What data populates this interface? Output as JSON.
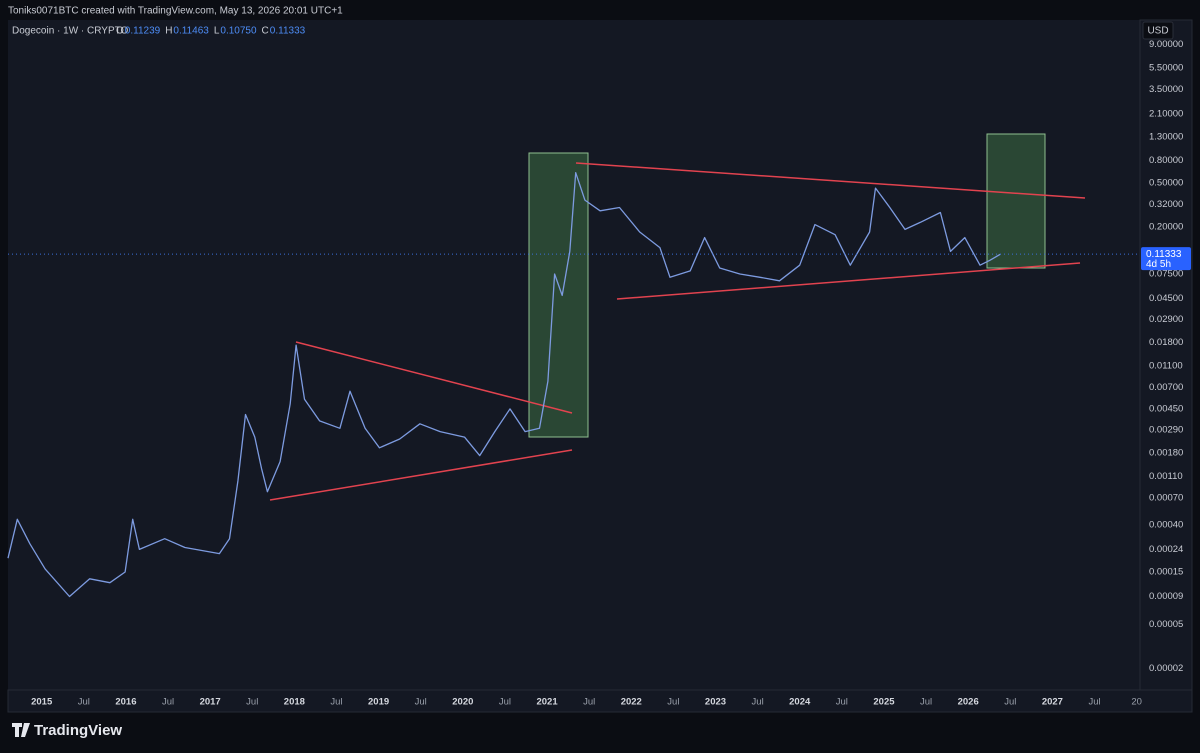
{
  "header": {
    "credit": "Toniks0071BTC created with TradingView.com, May 13, 2026 20:01 UTC+1",
    "ohlc": [
      {
        "key": "O",
        "value": "0.11239"
      },
      {
        "key": "H",
        "value": "0.11463"
      },
      {
        "key": "L",
        "value": "0.10750"
      },
      {
        "key": "C",
        "value": "0.11333"
      }
    ],
    "currency": "USD"
  },
  "chart_data": {
    "type": "line",
    "log_scale": true,
    "grid": false,
    "series": [
      {
        "name": "Dogecoin · 1W · CRYPTO",
        "color": "#7d9be0",
        "x": [
          2014.6,
          2014.71,
          2014.86,
          2015.04,
          2015.33,
          2015.57,
          2015.81,
          2015.99,
          2016.08,
          2016.16,
          2016.46,
          2016.7,
          2017.11,
          2017.23,
          2017.33,
          2017.42,
          2017.53,
          2017.61,
          2017.68,
          2017.83,
          2017.95,
          2018.02,
          2018.12,
          2018.3,
          2018.54,
          2018.66,
          2018.84,
          2019.01,
          2019.25,
          2019.49,
          2019.73,
          2020.02,
          2020.2,
          2020.38,
          2020.56,
          2020.74,
          2020.91,
          2021.01,
          2021.09,
          2021.18,
          2021.27,
          2021.34,
          2021.45,
          2021.63,
          2021.86,
          2022.1,
          2022.34,
          2022.46,
          2022.7,
          2022.87,
          2023.05,
          2023.29,
          2023.53,
          2023.76,
          2024.0,
          2024.18,
          2024.42,
          2024.6,
          2024.83,
          2024.9,
          2025.07,
          2025.25,
          2025.43,
          2025.67,
          2025.79,
          2025.96,
          2026.14,
          2026.26,
          2026.38
        ],
        "values": [
          0.0002,
          0.00045,
          0.00027,
          0.00016,
          9e-05,
          0.00013,
          0.00012,
          0.00015,
          0.00045,
          0.00024,
          0.0003,
          0.00025,
          0.00022,
          0.0003,
          0.001,
          0.004,
          0.0025,
          0.0013,
          0.0008,
          0.0015,
          0.005,
          0.017,
          0.0055,
          0.0035,
          0.003,
          0.0065,
          0.003,
          0.002,
          0.0024,
          0.0033,
          0.0028,
          0.0025,
          0.0017,
          0.0028,
          0.0045,
          0.0028,
          0.003,
          0.008,
          0.075,
          0.048,
          0.12,
          0.62,
          0.35,
          0.28,
          0.3,
          0.18,
          0.13,
          0.07,
          0.08,
          0.16,
          0.085,
          0.075,
          0.07,
          0.065,
          0.09,
          0.21,
          0.17,
          0.09,
          0.18,
          0.45,
          0.3,
          0.19,
          0.22,
          0.27,
          0.12,
          0.16,
          0.09,
          0.1,
          0.113
        ]
      }
    ],
    "last_price": 0.11333,
    "countdown": "4d 5h",
    "xlim": [
      2014.6,
      2028.04
    ],
    "xticks": [
      2015,
      {
        "value": 2015.5,
        "label": "Jul"
      },
      2016,
      {
        "value": 2016.5,
        "label": "Jul"
      },
      2017,
      {
        "value": 2017.5,
        "label": "Jul"
      },
      2018,
      {
        "value": 2018.5,
        "label": "Jul"
      },
      2019,
      {
        "value": 2019.5,
        "label": "Jul"
      },
      2020,
      {
        "value": 2020.5,
        "label": "Jul"
      },
      2021,
      {
        "value": 2021.5,
        "label": "Jul"
      },
      2022,
      {
        "value": 2022.5,
        "label": "Jul"
      },
      2023,
      {
        "value": 2023.5,
        "label": "Jul"
      },
      2024,
      {
        "value": 2024.5,
        "label": "Jul"
      },
      2025,
      {
        "value": 2025.5,
        "label": "Jul"
      },
      2026,
      {
        "value": 2026.5,
        "label": "Jul"
      },
      2027,
      {
        "value": 2027.5,
        "label": "Jul"
      },
      {
        "value": 2028,
        "label": "20"
      }
    ],
    "ylim": [
      1.28e-05,
      14.97
    ],
    "yticks": [
      {
        "value": 9,
        "label": "9.00000"
      },
      {
        "value": 5.5,
        "label": "5.50000"
      },
      {
        "value": 3.5,
        "label": "3.50000"
      },
      {
        "value": 2.1,
        "label": "2.10000"
      },
      {
        "value": 1.3,
        "label": "1.30000"
      },
      {
        "value": 0.8,
        "label": "0.80000"
      },
      {
        "value": 0.5,
        "label": "0.50000"
      },
      {
        "value": 0.32,
        "label": "0.32000"
      },
      {
        "value": 0.2,
        "label": "0.20000"
      },
      {
        "value": 0.075,
        "label": "0.07500"
      },
      {
        "value": 0.045,
        "label": "0.04500"
      },
      {
        "value": 0.029,
        "label": "0.02900"
      },
      {
        "value": 0.018,
        "label": "0.01800"
      },
      {
        "value": 0.011,
        "label": "0.01100"
      },
      {
        "value": 0.007,
        "label": "0.00700"
      },
      {
        "value": 0.0045,
        "label": "0.00450"
      },
      {
        "value": 0.0029,
        "label": "0.00290"
      },
      {
        "value": 0.0018,
        "label": "0.00180"
      },
      {
        "value": 0.0011,
        "label": "0.00110"
      },
      {
        "value": 0.0007,
        "label": "0.00070"
      },
      {
        "value": 0.0004,
        "label": "0.00040"
      },
      {
        "value": 0.00024,
        "label": "0.00024"
      },
      {
        "value": 0.00015,
        "label": "0.00015"
      },
      {
        "value": 9e-05,
        "label": "0.00009"
      },
      {
        "value": 5e-05,
        "label": "0.00005"
      },
      {
        "value": 2e-05,
        "label": "0.00002"
      }
    ]
  },
  "footer": {
    "brand": "TradingView"
  }
}
